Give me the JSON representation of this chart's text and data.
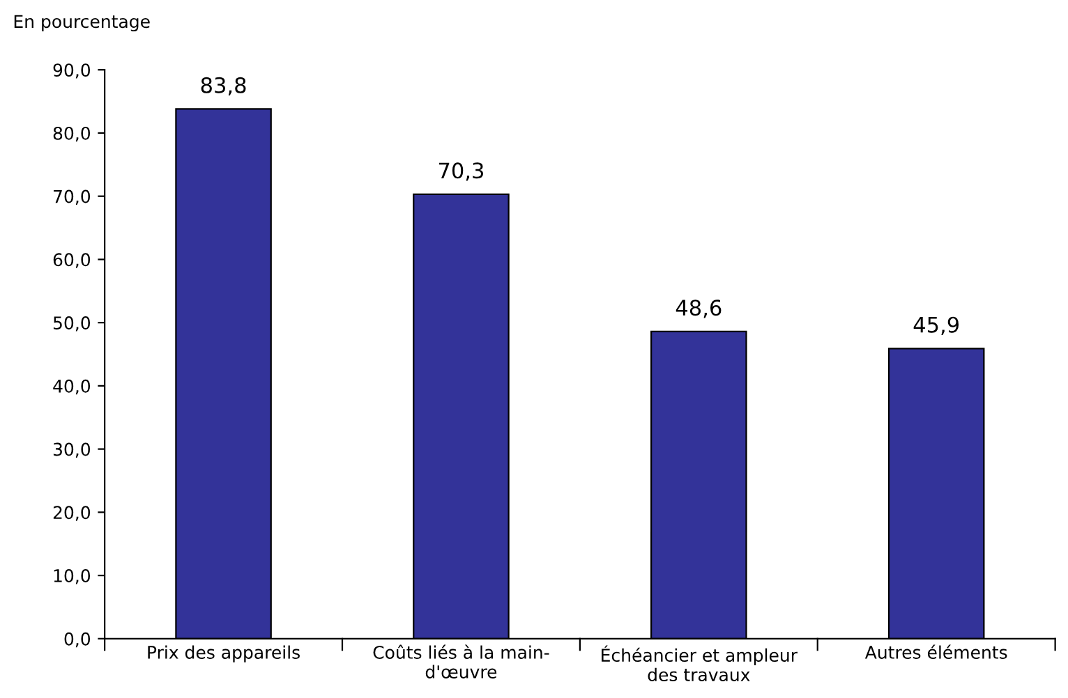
{
  "chart_data": {
    "type": "bar",
    "ylabel": "En pourcentage",
    "categories": [
      "Prix des appareils",
      "Coûts liés à la main-\nd'œuvre",
      "Échéancier et ampleur\ndes travaux",
      "Autres éléments"
    ],
    "values": [
      83.8,
      70.3,
      48.6,
      45.9
    ],
    "value_labels": [
      "83,8",
      "70,3",
      "48,6",
      "45,9"
    ],
    "color": "#333399",
    "ylim": [
      0,
      90
    ],
    "yticks": [
      {
        "value": 0,
        "label": "0,0"
      },
      {
        "value": 10,
        "label": "10,0"
      },
      {
        "value": 20,
        "label": "20,0"
      },
      {
        "value": 30,
        "label": "30,0"
      },
      {
        "value": 40,
        "label": "40,0"
      },
      {
        "value": 50,
        "label": "50,0"
      },
      {
        "value": 60,
        "label": "60,0"
      },
      {
        "value": 70,
        "label": "70,0"
      },
      {
        "value": 80,
        "label": "80,0"
      },
      {
        "value": 90,
        "label": "90,0"
      }
    ],
    "grid": false
  }
}
